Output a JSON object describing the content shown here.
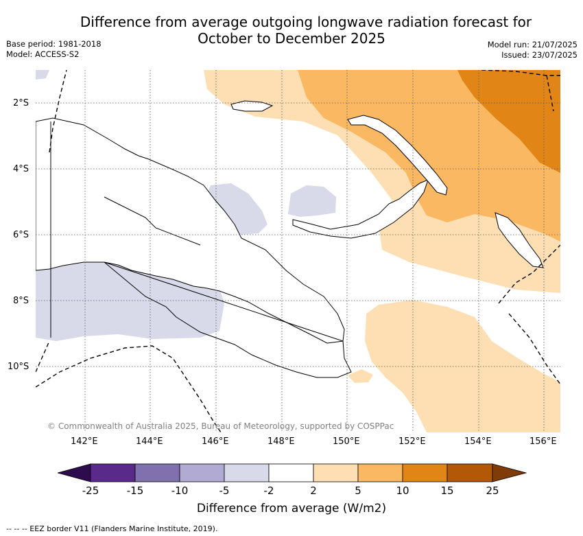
{
  "title": {
    "line1": "Difference from average outgoing longwave radiation forecast for",
    "line2": "October to December 2025"
  },
  "meta_left": {
    "base_period": "Base period: 1981-2018",
    "model": "Model: ACCESS-S2"
  },
  "meta_right": {
    "model_run": "Model run: 21/07/2025",
    "issued": "Issued: 23/07/2025"
  },
  "map": {
    "lat_ticks": [
      "2°S",
      "4°S",
      "6°S",
      "8°S",
      "10°S"
    ],
    "lon_ticks": [
      "142°E",
      "144°E",
      "146°E",
      "148°E",
      "150°E",
      "152°E",
      "154°E",
      "156°E"
    ],
    "copyright": "© Commonwealth of Australia 2025, Bureau of Meteorology, supported by COSPPac",
    "colors": {
      "below_2_5": "#d8d9e9",
      "above_2_5": "#fddfb3",
      "above_5_10": "#fbb862",
      "above_10_15": "#e08516",
      "land_outline": "#000000",
      "gridline": "#555555"
    }
  },
  "colorbar": {
    "title": "Difference from average (W/m2)",
    "labels": [
      "-25",
      "-15",
      "-10",
      "-5",
      "-2",
      "2",
      "5",
      "10",
      "15",
      "25"
    ],
    "colors": [
      "#2d0c4d",
      "#5a2a8a",
      "#8070ad",
      "#b1aad3",
      "#d8d9e9",
      "#ffffff",
      "#fddfb3",
      "#fbb862",
      "#e08516",
      "#b35806",
      "#7f3b08"
    ]
  },
  "footnote": "--  --  -- EEZ border V11 (Flanders Marine Institute, 2019)."
}
